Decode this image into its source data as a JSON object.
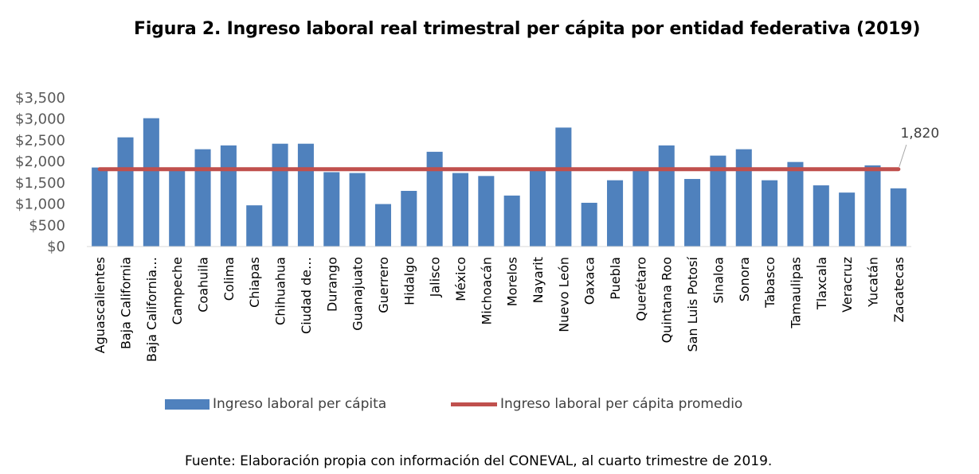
{
  "title": "Figura 2. Ingreso laboral real trimestral per cápita por entidad federativa (2019)",
  "source": "Fuente: Elaboración propia con información del CONEVAL, al cuarto trimestre de 2019.",
  "chart_data": {
    "type": "bar",
    "title": "Figura 2. Ingreso laboral real trimestral per cápita por entidad federativa (2019)",
    "xlabel": "",
    "ylabel": "",
    "ylim": [
      0,
      3500
    ],
    "yticks": [
      0,
      500,
      1000,
      1500,
      2000,
      2500,
      3000,
      3500
    ],
    "ytick_labels": [
      "$0",
      "$500",
      "$1,000",
      "$1,500",
      "$2,000",
      "$2,500",
      "$3,000",
      "$3,500"
    ],
    "grid": false,
    "legend_position": "bottom",
    "categories": [
      "Aguascalientes",
      "Baja California",
      "Baja California…",
      "Campeche",
      "Coahuila",
      "Colima",
      "Chiapas",
      "Chihuahua",
      "Ciudad de…",
      "Durango",
      "Guanajuato",
      "Guerrero",
      "Hidalgo",
      "Jalisco",
      "México",
      "Michoacán",
      "Morelos",
      "Nayarit",
      "Nuevo León",
      "Oaxaca",
      "Puebla",
      "Querétaro",
      "Quintana Roo",
      "San Luis Potosí",
      "Sinaloa",
      "Sonora",
      "Tabasco",
      "Tamaulipas",
      "Tlaxcala",
      "Veracruz",
      "Yucatán",
      "Zacatecas"
    ],
    "series": [
      {
        "name": "Ingreso laboral per cápita",
        "type": "bar",
        "color": "#4f81bd",
        "values": [
          1860,
          2570,
          3020,
          1830,
          2290,
          2380,
          970,
          2420,
          2420,
          1750,
          1730,
          1000,
          1310,
          2230,
          1730,
          1660,
          1200,
          1840,
          2800,
          1030,
          1560,
          1830,
          2380,
          1590,
          2140,
          2290,
          1560,
          1990,
          1440,
          1270,
          1910,
          1370
        ]
      },
      {
        "name": "Ingreso laboral per cápita promedio",
        "type": "line",
        "color": "#c0504d",
        "value": 1820,
        "data_label": "1,820"
      }
    ]
  }
}
